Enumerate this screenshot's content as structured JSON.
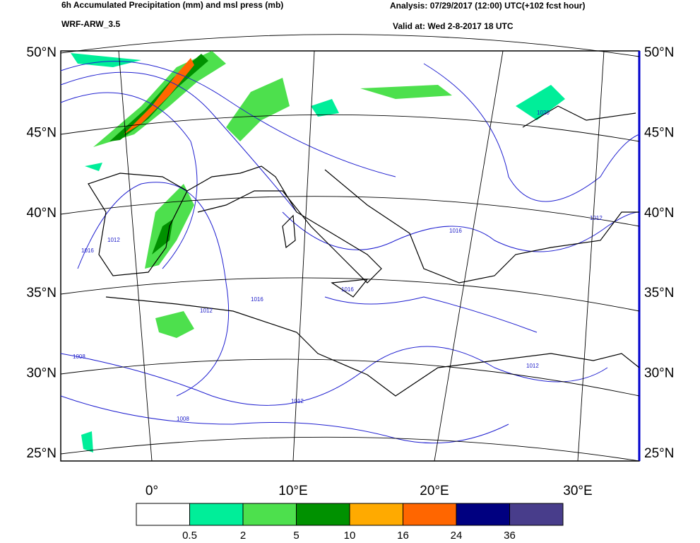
{
  "header": {
    "title": "6h Accumulated Precipitation (mm) and msl press (mb)",
    "model": "WRF-ARW_3.5",
    "analysis": "Analysis: 07/29/2017 (12:00) UTC(+102 fcst hour)",
    "valid": "Valid at: Wed 2-8-2017  18 UTC"
  },
  "map": {
    "lat_labels": [
      "50°N",
      "45°N",
      "40°N",
      "35°N",
      "30°N",
      "25°N"
    ],
    "lon_labels": [
      "0°",
      "10°E",
      "20°E",
      "30°E"
    ],
    "contour_labels": [
      "1016",
      "1012",
      "1008",
      "1012",
      "1016",
      "1016",
      "1012",
      "1008",
      "1012",
      "1016",
      "1020",
      "1012"
    ]
  },
  "colorbar": {
    "levels": [
      0.5,
      2,
      5,
      10,
      16,
      24,
      36
    ],
    "colors": [
      "#ffffff",
      "#00ee99",
      "#4de04d",
      "#009100",
      "#ffaa00",
      "#ff6600",
      "#000080",
      "#483d8b"
    ]
  }
}
